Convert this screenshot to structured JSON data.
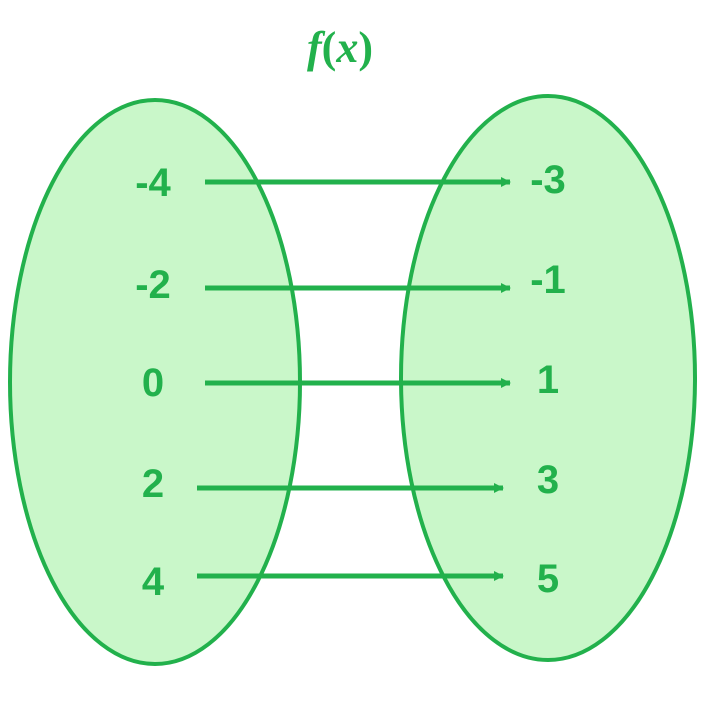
{
  "title": {
    "name": "f",
    "open": "(",
    "variable": "x",
    "close": ")"
  },
  "domain_values": [
    "-4",
    "-2",
    "0",
    "2",
    "4"
  ],
  "range_values": [
    "-3",
    "-1",
    "1",
    "3",
    "5"
  ],
  "mappings": [
    {
      "from": "-4",
      "to": "-3"
    },
    {
      "from": "-2",
      "to": "-1"
    },
    {
      "from": "0",
      "to": "1"
    },
    {
      "from": "2",
      "to": "3"
    },
    {
      "from": "4",
      "to": "5"
    }
  ],
  "colors": {
    "fill": "#c9f7c9",
    "stroke": "#22b14c",
    "text": "#22b14c"
  }
}
